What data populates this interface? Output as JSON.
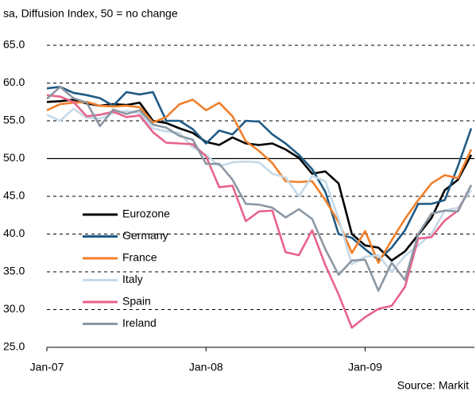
{
  "chart_data": {
    "type": "line",
    "subtitle": "sa, Diffusion Index, 50 = no change",
    "source": "Source: Markit",
    "categories": [
      "Jan-07",
      null,
      null,
      null,
      null,
      null,
      null,
      null,
      null,
      null,
      null,
      null,
      "Jan-08",
      null,
      null,
      null,
      null,
      null,
      null,
      null,
      null,
      null,
      null,
      null,
      "Jan-09",
      null,
      null,
      null,
      null,
      null,
      null,
      null,
      null
    ],
    "series": [
      {
        "name": "Eurozone",
        "color": "#000000",
        "values": [
          57.5,
          57.6,
          57.8,
          57.3,
          57.0,
          57.2,
          57.1,
          57.4,
          55.0,
          54.7,
          54.0,
          53.4,
          52.2,
          51.8,
          52.8,
          52.0,
          51.8,
          52.0,
          51.2,
          50.1,
          48.0,
          48.3,
          46.7,
          40.0,
          38.5,
          38.2,
          36.5,
          37.7,
          39.9,
          42.1,
          45.8,
          47.2,
          50.5
        ]
      },
      {
        "name": "Germany",
        "color": "#1f5a85",
        "values": [
          59.3,
          59.5,
          58.7,
          58.4,
          58.0,
          57.0,
          58.8,
          58.5,
          58.8,
          55.0,
          55.0,
          53.9,
          52.0,
          53.7,
          53.2,
          55.0,
          54.9,
          53.2,
          52.0,
          50.5,
          48.6,
          45.6,
          40.0,
          39.5,
          38.0,
          36.6,
          38.2,
          40.5,
          44.0,
          44.0,
          44.5,
          49.0,
          54.0
        ]
      },
      {
        "name": "France",
        "color": "#f07f2a",
        "values": [
          56.4,
          57.2,
          57.4,
          57.5,
          57.0,
          56.9,
          57.0,
          56.8,
          54.8,
          55.5,
          57.2,
          57.8,
          56.4,
          57.4,
          55.6,
          52.3,
          51.0,
          49.4,
          47.0,
          46.9,
          47.0,
          44.5,
          41.6,
          37.5,
          40.4,
          36.2,
          39.2,
          42.0,
          44.5,
          46.7,
          47.8,
          47.4,
          51.2
        ]
      },
      {
        "name": "Italy",
        "color": "#c5d9e8",
        "values": [
          55.8,
          55.0,
          56.6,
          55.4,
          55.3,
          56.0,
          56.3,
          56.0,
          54.0,
          53.6,
          53.4,
          51.5,
          50.5,
          49.0,
          49.5,
          49.6,
          49.5,
          48.0,
          47.5,
          45.0,
          47.7,
          47.0,
          42.0,
          36.0,
          37.0,
          37.2,
          35.0,
          37.1,
          38.5,
          40.0,
          43.1,
          43.5,
          45.8
        ]
      },
      {
        "name": "Spain",
        "color": "#e8638a",
        "values": [
          58.4,
          58.2,
          57.5,
          55.6,
          55.8,
          56.2,
          55.5,
          55.7,
          53.5,
          52.1,
          52.0,
          51.9,
          50.3,
          46.2,
          46.4,
          41.7,
          43.0,
          43.1,
          37.6,
          37.2,
          40.5,
          35.9,
          32.0,
          27.6,
          29.0,
          30.1,
          30.5,
          33.0,
          39.4,
          39.6,
          41.8,
          43.1,
          46.5
        ]
      },
      {
        "name": "Ireland",
        "color": "#8c97a3",
        "values": [
          57.9,
          59.5,
          58.0,
          57.4,
          54.3,
          56.5,
          55.9,
          56.4,
          54.5,
          54.1,
          53.0,
          52.5,
          49.3,
          49.3,
          47.2,
          44.0,
          43.9,
          43.5,
          42.2,
          43.3,
          42.0,
          38.0,
          34.6,
          36.5,
          36.6,
          32.5,
          36.2,
          33.9,
          40.0,
          42.7,
          43.1,
          43.0,
          46.5
        ]
      }
    ],
    "ylim": [
      25,
      65
    ],
    "yticks": [
      {
        "value": 25,
        "label": "25.0"
      },
      {
        "value": 30,
        "label": "30.0"
      },
      {
        "value": 35,
        "label": "35.0"
      },
      {
        "value": 40,
        "label": "40.0"
      },
      {
        "value": 45,
        "label": "45.0"
      },
      {
        "value": 50,
        "label": "50.0"
      },
      {
        "value": 55,
        "label": "55.0"
      },
      {
        "value": 60,
        "label": "60.0"
      },
      {
        "value": 65,
        "label": "65.0"
      }
    ],
    "reference_line": 50,
    "grid": true,
    "legend": "left"
  }
}
